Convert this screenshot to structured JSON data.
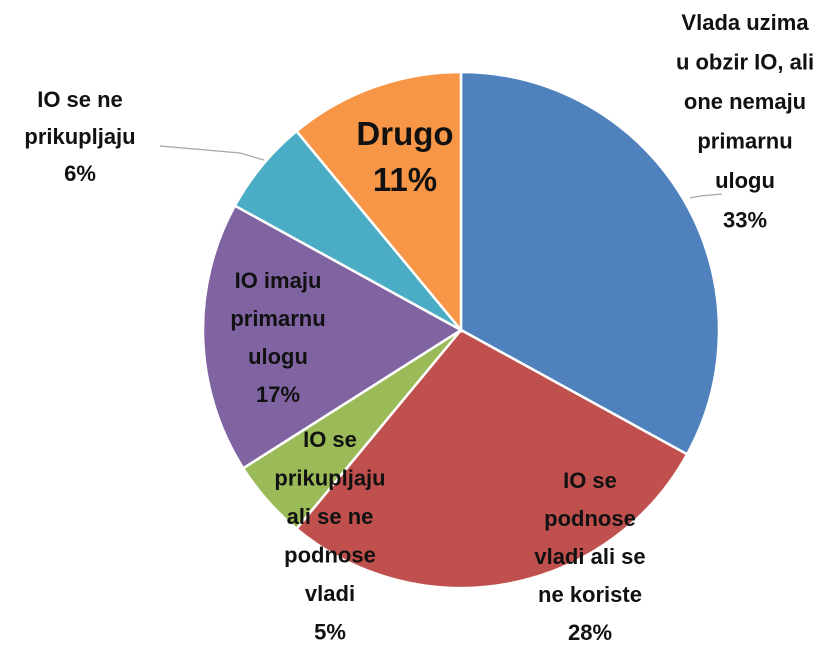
{
  "chart_data": {
    "type": "pie",
    "categories": [
      "Vlada uzima\nu obzir IO, ali\none nemaju\nprimarnu\nulogu",
      "IO se\npodnose\nvladi ali se\nne koriste",
      "IO se\nprikupljaju\nali se ne\npodnose\nvladi",
      "IO imaju\nprimarnu\nulogu",
      "IO se ne\nprikupljaju",
      "Drugo"
    ],
    "values": [
      33,
      28,
      5,
      17,
      6,
      11
    ],
    "value_labels": [
      "33%",
      "28%",
      "5%",
      "17%",
      "6%",
      "11%"
    ],
    "colors": [
      "#4f81bd",
      "#c0504d",
      "#9bbb59",
      "#8064a2",
      "#4bacc6",
      "#f79646"
    ]
  }
}
